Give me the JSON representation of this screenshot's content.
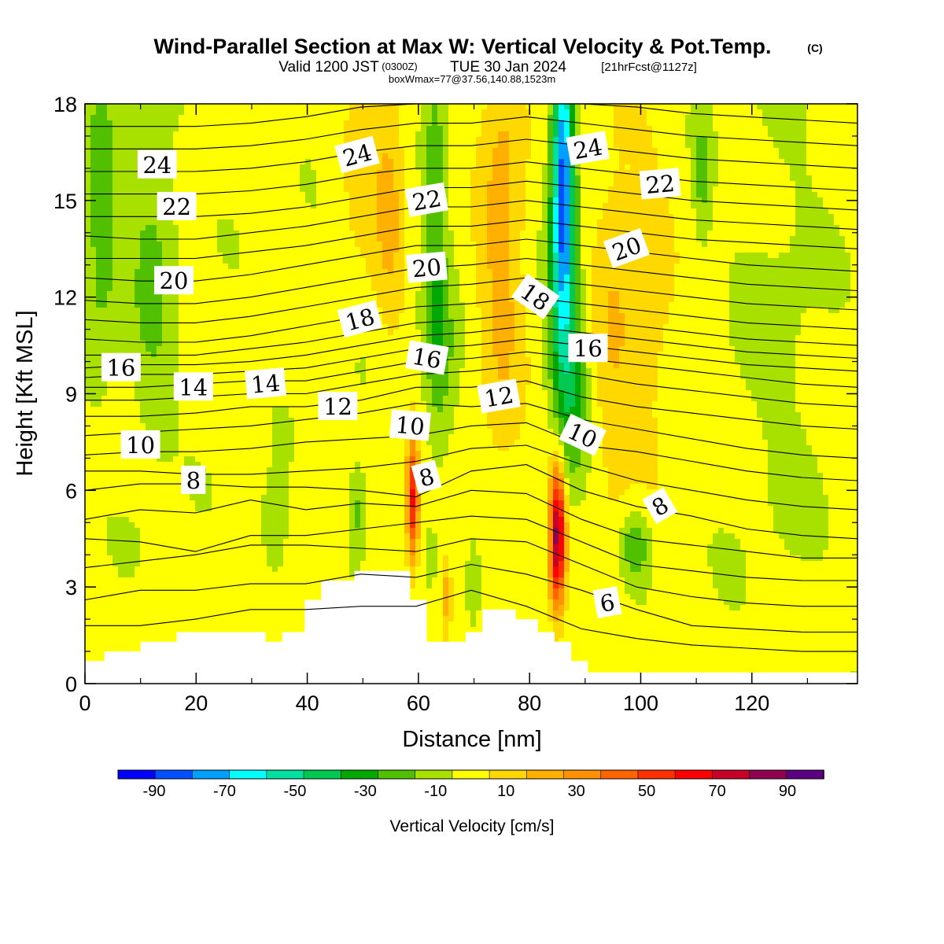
{
  "header": {
    "title_main": "Wind-Parallel Section at Max W: Vertical Velocity & Pot.Temp.",
    "title_mark": "(C)",
    "valid_prefix": "Valid 1200 JST",
    "valid_utc": "(0300Z)",
    "valid_date": "TUE 30 Jan 2024",
    "forecast": "[21hrFcst@1127z]",
    "box_info": "boxWmax=77@37.56,140.88,1523m"
  },
  "colors": {
    "background": "#ffffff",
    "terrain": "#ffffff",
    "contour": "#000000",
    "scale": [
      "#0000ff",
      "#0050ff",
      "#00a0ff",
      "#00ffff",
      "#00e0a0",
      "#00c850",
      "#00a800",
      "#50c000",
      "#a8e000",
      "#ffff00",
      "#ffd800",
      "#ffb000",
      "#ff9000",
      "#ff6400",
      "#ff3000",
      "#ff0000",
      "#c80028",
      "#900050",
      "#5a0080"
    ]
  },
  "chart_data": {
    "type": "heatmap",
    "title": "Wind-Parallel Section at Max W: Vertical Velocity & Pot.Temp.",
    "xlabel": "Distance [nm]",
    "ylabel": "Height [Kft MSL]",
    "xlim": [
      0,
      139
    ],
    "ylim": [
      0,
      18
    ],
    "x_ticks": [
      0,
      20,
      40,
      60,
      80,
      100,
      120
    ],
    "y_ticks": [
      0,
      3,
      6,
      9,
      12,
      15,
      18
    ],
    "colorbar": {
      "label": "Vertical Velocity [cm/s]",
      "bounds": [
        -100,
        -90,
        -80,
        -70,
        -60,
        -50,
        -40,
        -30,
        -20,
        -10,
        0,
        10,
        20,
        30,
        40,
        50,
        60,
        70,
        80,
        90,
        100
      ],
      "tick_labels": [
        "-90",
        "-70",
        "-50",
        "-30",
        "-10",
        "10",
        "30",
        "50",
        "70",
        "90"
      ],
      "tick_values": [
        -90,
        -70,
        -50,
        -30,
        -10,
        10,
        30,
        50,
        70,
        90
      ]
    },
    "velocity_features": [
      {
        "x": 3,
        "y": 14.5,
        "w": -22,
        "sx": 2,
        "sy": 3
      },
      {
        "x": 12,
        "y": 13,
        "w": -15,
        "sx": 3,
        "sy": 4
      },
      {
        "x": 55,
        "y": 15,
        "w": 18,
        "sx": 2,
        "sy": 3
      },
      {
        "x": 50,
        "y": 16,
        "w": 12,
        "sx": 3,
        "sy": 2
      },
      {
        "x": 63,
        "y": 15,
        "w": -20,
        "sx": 1.5,
        "sy": 4
      },
      {
        "x": 64,
        "y": 10,
        "w": -15,
        "sx": 2,
        "sy": 2
      },
      {
        "x": 75,
        "y": 14,
        "w": 22,
        "sx": 3,
        "sy": 5
      },
      {
        "x": 86,
        "y": 16.5,
        "w": -60,
        "sx": 1.3,
        "sy": 3
      },
      {
        "x": 86,
        "y": 12.5,
        "w": -40,
        "sx": 1.8,
        "sy": 3
      },
      {
        "x": 88,
        "y": 9,
        "w": -20,
        "sx": 2,
        "sy": 2
      },
      {
        "x": 95,
        "y": 11,
        "w": 15,
        "sx": 3,
        "sy": 5
      },
      {
        "x": 102,
        "y": 12,
        "w": 12,
        "sx": 3,
        "sy": 4
      },
      {
        "x": 59,
        "y": 5.7,
        "w": 60,
        "sx": 0.8,
        "sy": 1.4
      },
      {
        "x": 85,
        "y": 4.6,
        "w": 80,
        "sx": 1.0,
        "sy": 1.6
      },
      {
        "x": 65,
        "y": 2.7,
        "w": 22,
        "sx": 0.7,
        "sy": 1.0
      },
      {
        "x": 99,
        "y": 4.3,
        "w": -25,
        "sx": 2,
        "sy": 0.8
      },
      {
        "x": 49,
        "y": 5.3,
        "w": -18,
        "sx": 1.2,
        "sy": 1.0
      },
      {
        "x": 34,
        "y": 4.8,
        "w": -15,
        "sx": 1.5,
        "sy": 1.0
      },
      {
        "x": 111,
        "y": 15.8,
        "w": -15,
        "sx": 1,
        "sy": 1.5
      },
      {
        "x": 125,
        "y": 11,
        "w": -5,
        "sx": 6,
        "sy": 6
      },
      {
        "x": 70,
        "y": 3,
        "w": -12,
        "sx": 1,
        "sy": 1
      }
    ],
    "theta_lines": [
      [
        1,
        [
          1.8,
          1.8,
          2.0,
          2.3,
          2.3,
          2.4,
          2.4,
          2.9,
          2.4,
          1.7,
          1.4,
          1.2,
          1.1,
          1.0,
          1.0
        ]
      ],
      [
        2,
        [
          2.6,
          2.9,
          2.9,
          3.1,
          3.1,
          3.4,
          3.3,
          3.7,
          3.4,
          2.9,
          2.3,
          1.8,
          1.7,
          1.6,
          1.6
        ]
      ],
      [
        3,
        [
          3.6,
          3.8,
          4.0,
          4.3,
          4.3,
          4.2,
          4.1,
          4.5,
          4.4,
          3.7,
          3.0,
          2.7,
          2.5,
          2.4,
          2.4
        ]
      ],
      [
        4,
        [
          4.5,
          4.4,
          4.1,
          4.6,
          4.6,
          4.8,
          5.0,
          5.2,
          5.1,
          4.4,
          3.7,
          3.5,
          3.3,
          3.2,
          3.2
        ]
      ],
      [
        5,
        [
          5.1,
          5.4,
          5.3,
          5.7,
          5.4,
          5.6,
          5.5,
          6.0,
          5.9,
          5.1,
          4.5,
          4.3,
          4.1,
          3.9,
          3.9
        ]
      ],
      [
        6,
        [
          6.0,
          6.2,
          6.2,
          6.1,
          6.1,
          6.0,
          5.8,
          6.6,
          6.8,
          6.0,
          5.5,
          5.2,
          4.8,
          4.6,
          4.5
        ]
      ],
      [
        7,
        [
          6.6,
          6.6,
          6.5,
          6.5,
          6.6,
          6.7,
          6.9,
          7.3,
          7.4,
          6.8,
          6.3,
          6.0,
          5.7,
          5.5,
          5.4
        ]
      ],
      [
        8,
        [
          7.1,
          7.2,
          7.2,
          7.3,
          7.5,
          7.6,
          7.7,
          8.0,
          8.1,
          7.4,
          7.2,
          6.9,
          6.6,
          6.4,
          6.3
        ]
      ],
      [
        9,
        [
          7.7,
          7.8,
          7.9,
          8.0,
          8.2,
          8.4,
          8.7,
          8.6,
          8.7,
          8.2,
          7.9,
          7.6,
          7.3,
          7.1,
          7.0
        ]
      ],
      [
        10,
        [
          8.3,
          8.3,
          8.4,
          8.6,
          8.6,
          8.8,
          9.2,
          9.2,
          9.4,
          8.9,
          8.6,
          8.4,
          8.2,
          8.0,
          7.9
        ]
      ],
      [
        11,
        [
          8.8,
          8.8,
          8.9,
          9.0,
          9.0,
          9.3,
          9.6,
          9.7,
          9.9,
          9.6,
          9.3,
          9.1,
          8.9,
          8.7,
          8.6
        ]
      ],
      [
        12,
        [
          9.2,
          9.2,
          9.3,
          9.4,
          9.4,
          9.7,
          10.0,
          10.1,
          10.3,
          10.1,
          9.9,
          9.7,
          9.5,
          9.3,
          9.2
        ]
      ],
      [
        13,
        [
          9.5,
          9.6,
          9.6,
          9.7,
          9.8,
          10.1,
          10.4,
          10.5,
          10.7,
          10.5,
          10.3,
          10.1,
          9.9,
          9.8,
          9.7
        ]
      ],
      [
        14,
        [
          9.8,
          9.9,
          9.9,
          10.0,
          10.2,
          10.5,
          10.8,
          10.9,
          11.1,
          10.9,
          10.7,
          10.5,
          10.3,
          10.2,
          10.1
        ]
      ],
      [
        15,
        [
          10.2,
          10.2,
          10.2,
          10.4,
          10.6,
          10.9,
          11.2,
          11.3,
          11.5,
          11.3,
          11.1,
          10.9,
          10.7,
          10.6,
          10.5
        ]
      ],
      [
        16,
        [
          10.7,
          10.6,
          10.6,
          10.8,
          11.1,
          11.4,
          11.7,
          11.8,
          12.0,
          11.8,
          11.6,
          11.4,
          11.2,
          11.1,
          11.0
        ]
      ],
      [
        17,
        [
          11.3,
          11.2,
          11.2,
          11.4,
          11.7,
          12.0,
          12.3,
          12.4,
          12.6,
          12.4,
          12.2,
          12.0,
          11.8,
          11.7,
          11.6
        ]
      ],
      [
        18,
        [
          11.9,
          11.8,
          11.8,
          12.0,
          12.3,
          12.6,
          12.9,
          13.0,
          13.2,
          13.0,
          12.8,
          12.6,
          12.4,
          12.3,
          12.2
        ]
      ],
      [
        19,
        [
          12.6,
          12.5,
          12.5,
          12.7,
          13.0,
          13.3,
          13.6,
          13.6,
          13.8,
          13.6,
          13.4,
          13.2,
          13.0,
          12.9,
          12.8
        ]
      ],
      [
        20,
        [
          13.2,
          13.2,
          13.2,
          13.4,
          13.6,
          13.9,
          14.2,
          14.2,
          14.4,
          14.2,
          14.0,
          13.8,
          13.7,
          13.6,
          13.5
        ]
      ],
      [
        21,
        [
          13.9,
          13.8,
          13.8,
          14.0,
          14.2,
          14.5,
          14.8,
          14.8,
          15.0,
          14.8,
          14.6,
          14.4,
          14.3,
          14.2,
          14.1
        ]
      ],
      [
        22,
        [
          14.5,
          14.5,
          14.5,
          14.6,
          14.8,
          15.1,
          15.4,
          15.4,
          15.6,
          15.4,
          15.2,
          15.0,
          14.9,
          14.8,
          14.7
        ]
      ],
      [
        23,
        [
          15.2,
          15.2,
          15.2,
          15.3,
          15.5,
          15.8,
          16.0,
          16.0,
          16.2,
          16.0,
          15.8,
          15.6,
          15.5,
          15.4,
          15.3
        ]
      ],
      [
        24,
        [
          15.9,
          15.9,
          15.9,
          16.0,
          16.2,
          16.5,
          16.7,
          16.7,
          16.9,
          16.7,
          16.5,
          16.3,
          16.2,
          16.1,
          16.0
        ]
      ],
      [
        25,
        [
          16.6,
          16.6,
          16.6,
          16.7,
          16.9,
          17.2,
          17.4,
          17.4,
          17.6,
          17.4,
          17.2,
          17.0,
          16.9,
          16.8,
          16.7
        ]
      ],
      [
        26,
        [
          17.3,
          17.3,
          17.3,
          17.4,
          17.6,
          17.9,
          18.0,
          18.0,
          18.0,
          18.0,
          17.9,
          17.7,
          17.6,
          17.5,
          17.4
        ]
      ]
    ],
    "theta_labels": [
      {
        "text": "24",
        "x": 13,
        "y": 16.1,
        "rot": 0
      },
      {
        "text": "22",
        "x": 16.5,
        "y": 14.8,
        "rot": 0
      },
      {
        "text": "20",
        "x": 16,
        "y": 12.5,
        "rot": 0
      },
      {
        "text": "16",
        "x": 6.5,
        "y": 9.8,
        "rot": 0
      },
      {
        "text": "14",
        "x": 19.5,
        "y": 9.2,
        "rot": 0
      },
      {
        "text": "14",
        "x": 32.5,
        "y": 9.3,
        "rot": -5
      },
      {
        "text": "10",
        "x": 10,
        "y": 7.4,
        "rot": 0
      },
      {
        "text": "8",
        "x": 19.5,
        "y": 6.3,
        "rot": 0
      },
      {
        "text": "12",
        "x": 45.5,
        "y": 8.6,
        "rot": 0
      },
      {
        "text": "18",
        "x": 49.5,
        "y": 11.3,
        "rot": -15
      },
      {
        "text": "24",
        "x": 49,
        "y": 16.4,
        "rot": -15
      },
      {
        "text": "22",
        "x": 61.5,
        "y": 15.0,
        "rot": -10
      },
      {
        "text": "20",
        "x": 61.5,
        "y": 12.9,
        "rot": -5
      },
      {
        "text": "16",
        "x": 61.5,
        "y": 10.1,
        "rot": 10
      },
      {
        "text": "10",
        "x": 58.5,
        "y": 8.0,
        "rot": 5
      },
      {
        "text": "8",
        "x": 61.5,
        "y": 6.4,
        "rot": -15
      },
      {
        "text": "12",
        "x": 74.5,
        "y": 8.9,
        "rot": -10
      },
      {
        "text": "18",
        "x": 81,
        "y": 12.0,
        "rot": 35
      },
      {
        "text": "24",
        "x": 90.5,
        "y": 16.6,
        "rot": -10
      },
      {
        "text": "16",
        "x": 90.5,
        "y": 10.4,
        "rot": 0
      },
      {
        "text": "10",
        "x": 89.5,
        "y": 7.7,
        "rot": 25
      },
      {
        "text": "22",
        "x": 103.5,
        "y": 15.5,
        "rot": -5
      },
      {
        "text": "20",
        "x": 97.5,
        "y": 13.5,
        "rot": -20
      },
      {
        "text": "8",
        "x": 103.5,
        "y": 5.5,
        "rot": -30
      },
      {
        "text": "6",
        "x": 94,
        "y": 2.5,
        "rot": -10
      }
    ],
    "terrain": [
      [
        0,
        0.7
      ],
      [
        3.5,
        0.7
      ],
      [
        3.5,
        1.0
      ],
      [
        10,
        1.0
      ],
      [
        10,
        1.3
      ],
      [
        16.5,
        1.3
      ],
      [
        16.5,
        1.6
      ],
      [
        32.5,
        1.6
      ],
      [
        32.5,
        1.3
      ],
      [
        35.5,
        1.3
      ],
      [
        35.5,
        1.6
      ],
      [
        39.5,
        1.6
      ],
      [
        39.5,
        2.6
      ],
      [
        42.5,
        2.6
      ],
      [
        42.5,
        3.2
      ],
      [
        48.5,
        3.2
      ],
      [
        48.5,
        3.5
      ],
      [
        58.5,
        3.5
      ],
      [
        58.5,
        2.6
      ],
      [
        61.5,
        2.6
      ],
      [
        61.5,
        1.3
      ],
      [
        68.5,
        1.3
      ],
      [
        68.5,
        1.6
      ],
      [
        71.5,
        1.6
      ],
      [
        71.5,
        2.3
      ],
      [
        77.5,
        2.3
      ],
      [
        77.5,
        2.0
      ],
      [
        81.5,
        2.0
      ],
      [
        81.5,
        1.6
      ],
      [
        84.5,
        1.6
      ],
      [
        84.5,
        1.3
      ],
      [
        87.5,
        1.3
      ],
      [
        87.5,
        0.7
      ],
      [
        90.5,
        0.7
      ],
      [
        90.5,
        0.35
      ],
      [
        139,
        0.35
      ]
    ]
  }
}
